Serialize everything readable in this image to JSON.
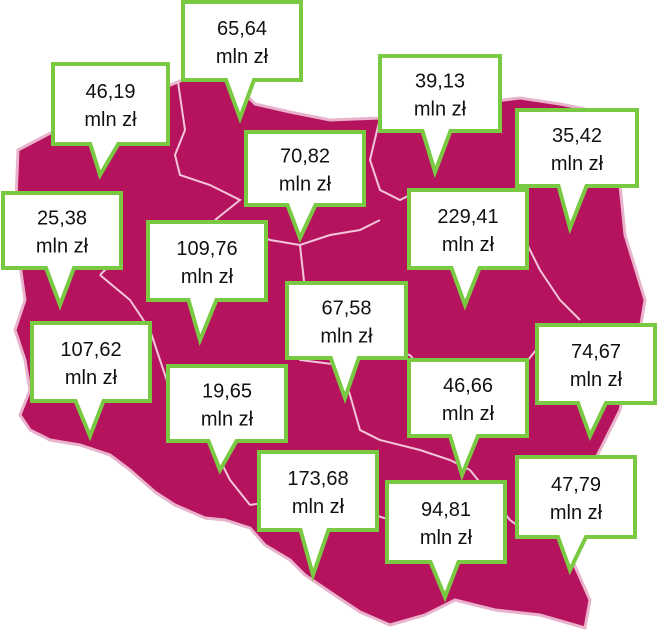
{
  "map": {
    "fill_color": "#b5135e",
    "border_color": "#e9b3cc",
    "callout_border_color": "#7ac943",
    "callout_bg_color": "#ffffff",
    "unit": "mln zł",
    "regions": [
      {
        "id": "zachodniopomorskie",
        "value": "46,19"
      },
      {
        "id": "pomorskie",
        "value": "65,64"
      },
      {
        "id": "warminsko-mazurskie",
        "value": "39,13"
      },
      {
        "id": "podlaskie",
        "value": "35,42"
      },
      {
        "id": "kujawsko-pomorskie",
        "value": "70,82"
      },
      {
        "id": "lubuskie",
        "value": "25,38"
      },
      {
        "id": "wielkopolskie",
        "value": "109,76"
      },
      {
        "id": "mazowieckie",
        "value": "229,41"
      },
      {
        "id": "lodzkie",
        "value": "67,58"
      },
      {
        "id": "dolnoslaskie",
        "value": "107,62"
      },
      {
        "id": "lubelskie",
        "value": "74,67"
      },
      {
        "id": "opolskie",
        "value": "19,65"
      },
      {
        "id": "swietokrzyskie",
        "value": "46,66"
      },
      {
        "id": "slaskie",
        "value": "173,68"
      },
      {
        "id": "malopolskie",
        "value": "94,81"
      },
      {
        "id": "podkarpackie",
        "value": "47,79"
      }
    ]
  }
}
